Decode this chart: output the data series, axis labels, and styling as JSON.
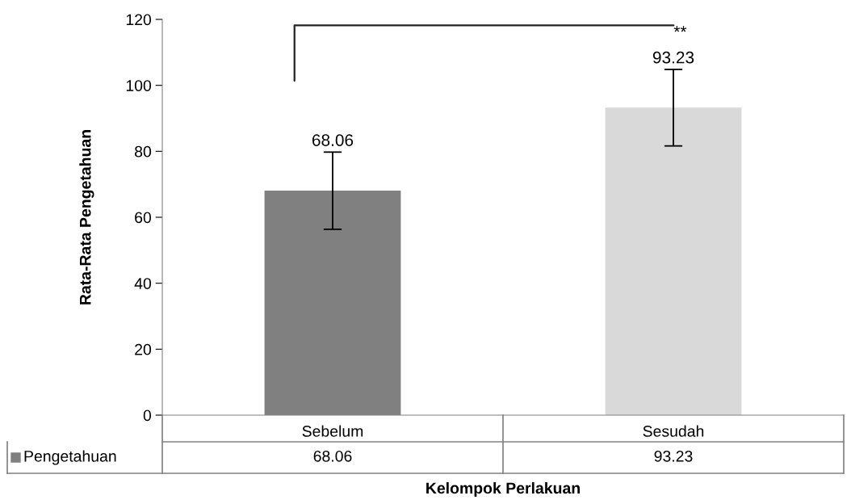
{
  "chart_data": {
    "type": "bar",
    "xlabel": "Kelompok Perlakuan",
    "ylabel": "Rata-Rata Pengetahuan",
    "categories": [
      "Sebelum",
      "Sesudah"
    ],
    "series": [
      {
        "name": "Pengetahuan",
        "colors": [
          "#808080",
          "#d9d9d9"
        ],
        "values": [
          68.06,
          93.23
        ],
        "value_labels": [
          "68.06",
          "93.23"
        ],
        "errors": [
          11.7,
          11.6
        ]
      }
    ],
    "ylim": [
      0,
      120
    ],
    "yticks": [
      0,
      20,
      40,
      60,
      80,
      100,
      120
    ],
    "grid": false,
    "annotations": [
      "**",
      "68.06",
      "93.23"
    ]
  }
}
